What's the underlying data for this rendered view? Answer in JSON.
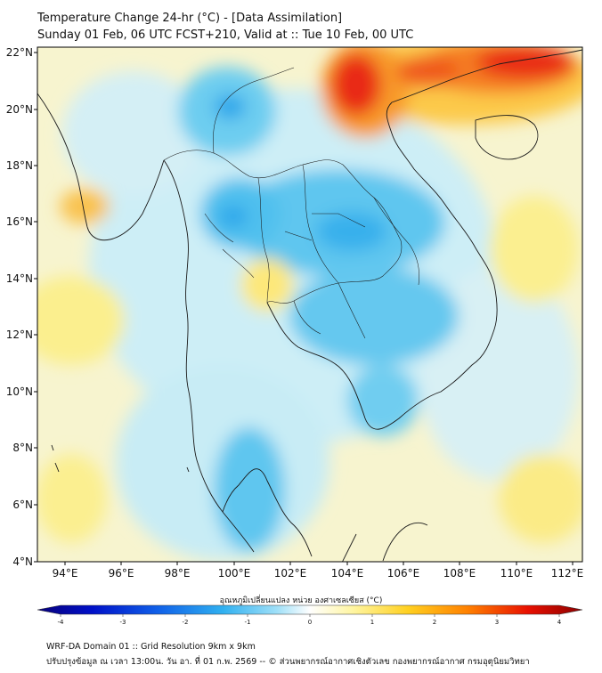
{
  "title_line1": "Temperature Change 24-hr (°C) - [Data Assimilation]",
  "title_line2": "Sunday 01 Feb, 06 UTC FCST+210, Valid at :: Tue 10 Feb, 00 UTC",
  "lat_labels": [
    "22°N",
    "20°N",
    "18°N",
    "16°N",
    "14°N",
    "12°N",
    "10°N",
    "8°N",
    "6°N",
    "4°N"
  ],
  "lon_labels": [
    "94°E",
    "96°E",
    "98°E",
    "100°E",
    "102°E",
    "104°E",
    "106°E",
    "108°E",
    "110°E",
    "112°E"
  ],
  "colorbar": {
    "label": "อุณหภูมิเปลี่ยนแปลง หน่วย องศาเซลเซียส (°C)",
    "ticks": [
      "-4",
      "-3",
      "-2",
      "-1",
      "0",
      "1",
      "2",
      "3",
      "4"
    ],
    "colors": [
      "#08007a",
      "#0010c8",
      "#1060e8",
      "#30b0f0",
      "#a0e0f8",
      "#ffffff",
      "#fff5a0",
      "#ffd020",
      "#ff8000",
      "#e81000",
      "#8c0000"
    ]
  },
  "footer_line1": "WRF-DA Domain 01 :: Grid Resolution 9km x 9km",
  "footer_line2": "ปรับปรุงข้อมูล ณ เวลา 13:00น. วัน อา. ที่ 01 ก.พ. 2569 -- © ส่วนพยากรณ์อากาศเชิงตัวเลข กองพยากรณ์อากาศ กรมอุตุนิยมวิทยา"
}
